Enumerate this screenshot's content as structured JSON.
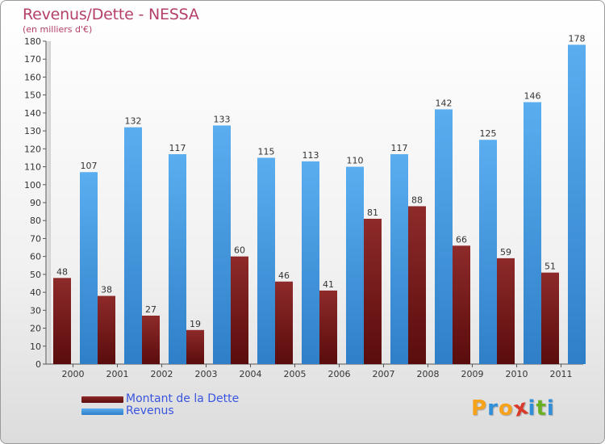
{
  "header": {
    "title": "Revenus/Dette - NESSA",
    "subtitle": "(en milliers d'€)"
  },
  "legend": [
    {
      "label": "Montant de la Dette",
      "color": "#7a1c1c"
    },
    {
      "label": "Revenus",
      "color": "#4a9ee6"
    }
  ],
  "logo": {
    "text": "Proxiti",
    "letters": [
      {
        "char": "P",
        "color": "#f7a21b"
      },
      {
        "char": "r",
        "color": "#2f8fd8"
      },
      {
        "char": "o",
        "color": "#f7a21b"
      },
      {
        "char": "x",
        "color": "#d93a2b"
      },
      {
        "char": "i",
        "color": "#2f8fd8"
      },
      {
        "char": "t",
        "color": "#6ab023"
      },
      {
        "char": "i",
        "color": "#2f8fd8"
      }
    ]
  },
  "chart_data": {
    "type": "bar",
    "title": "Revenus/Dette - NESSA",
    "subtitle": "(en milliers d'€)",
    "categories": [
      "2000",
      "2001",
      "2002",
      "2003",
      "2004",
      "2005",
      "2006",
      "2007",
      "2008",
      "2009",
      "2010",
      "2011"
    ],
    "series": [
      {
        "name": "Montant de la Dette",
        "color": "#7a1c1c",
        "values": [
          48,
          38,
          27,
          19,
          60,
          46,
          41,
          81,
          88,
          66,
          59,
          51
        ]
      },
      {
        "name": "Revenus",
        "color": "#4a9ee6",
        "values": [
          107,
          132,
          117,
          133,
          115,
          113,
          110,
          117,
          142,
          125,
          146,
          178
        ]
      }
    ],
    "ylim": [
      0,
      180
    ],
    "yticks": [
      0,
      10,
      20,
      30,
      40,
      50,
      60,
      70,
      80,
      90,
      100,
      110,
      120,
      130,
      140,
      150,
      160,
      170,
      180
    ],
    "grid": false,
    "legend_position": "bottom-left",
    "data_labels": true
  }
}
